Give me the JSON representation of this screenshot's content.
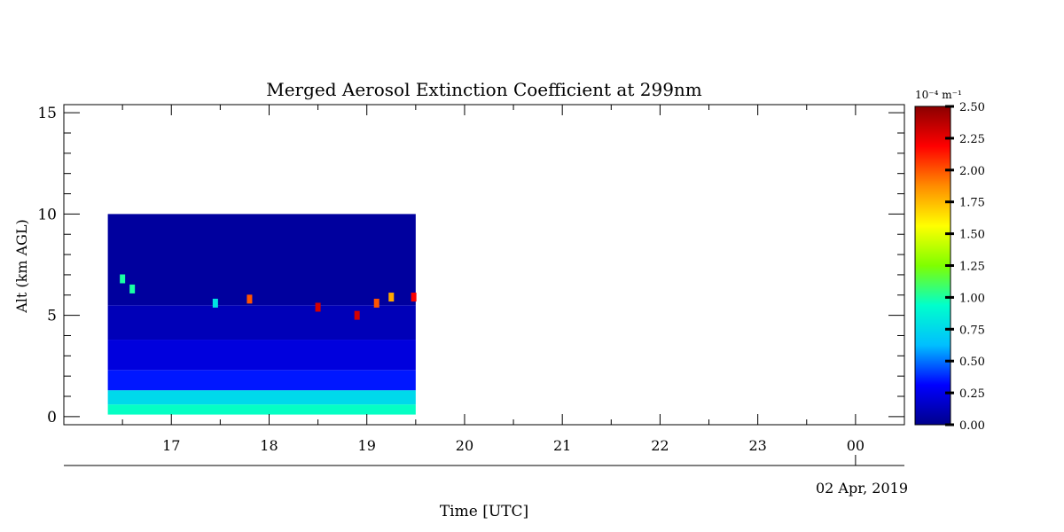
{
  "chart_data": {
    "type": "heatmap",
    "title": "Merged Aerosol Extinction Coefficient at 299nm",
    "xlabel": "Time [UTC]",
    "ylabel": "Alt (km AGL)",
    "date_label": "02 Apr, 2019",
    "x_ticks": [
      "17",
      "18",
      "19",
      "20",
      "21",
      "22",
      "23",
      "00"
    ],
    "x_tick_values": [
      17,
      18,
      19,
      20,
      21,
      22,
      23,
      24
    ],
    "xlim": [
      15.9,
      24.5
    ],
    "y_ticks": [
      "0",
      "5",
      "10",
      "15"
    ],
    "y_tick_values": [
      0,
      5,
      10,
      15
    ],
    "ylim": [
      -0.4,
      15.4
    ],
    "data_extent": {
      "x": [
        16.35,
        19.5
      ],
      "y": [
        0.1,
        10.0
      ]
    },
    "colorbar": {
      "unit_label": "10⁻⁴ m⁻¹",
      "ticks": [
        "2.50",
        "2.25",
        "2.00",
        "1.75",
        "1.50",
        "1.25",
        "1.00",
        "0.75",
        "0.50",
        "0.25",
        "0.00"
      ],
      "min": 0.0,
      "max": 2.5,
      "colormap": [
        "#00008b",
        "#0000ff",
        "#00bfff",
        "#00ffcc",
        "#7fff00",
        "#ffff00",
        "#ff8c00",
        "#ff0000",
        "#8b0000"
      ]
    },
    "layers": [
      {
        "alt_range": [
          0.1,
          0.6
        ],
        "value": 0.95
      },
      {
        "alt_range": [
          0.6,
          1.3
        ],
        "value": 0.75
      },
      {
        "alt_range": [
          1.3,
          2.3
        ],
        "value": 0.35
      },
      {
        "alt_range": [
          2.3,
          3.8
        ],
        "value": 0.22
      },
      {
        "alt_range": [
          3.8,
          5.5
        ],
        "value": 0.12
      },
      {
        "alt_range": [
          5.5,
          10.0
        ],
        "value": 0.05
      }
    ],
    "features": [
      {
        "time": 16.5,
        "alt": 6.8,
        "value": 1.0
      },
      {
        "time": 16.6,
        "alt": 6.3,
        "value": 1.0
      },
      {
        "time": 17.45,
        "alt": 5.6,
        "value": 0.8
      },
      {
        "time": 17.8,
        "alt": 5.8,
        "value": 2.0
      },
      {
        "time": 18.5,
        "alt": 5.4,
        "value": 2.3
      },
      {
        "time": 18.9,
        "alt": 5.0,
        "value": 2.3
      },
      {
        "time": 19.1,
        "alt": 5.6,
        "value": 2.0
      },
      {
        "time": 19.25,
        "alt": 5.9,
        "value": 1.8
      },
      {
        "time": 19.48,
        "alt": 5.9,
        "value": 2.2
      }
    ]
  }
}
